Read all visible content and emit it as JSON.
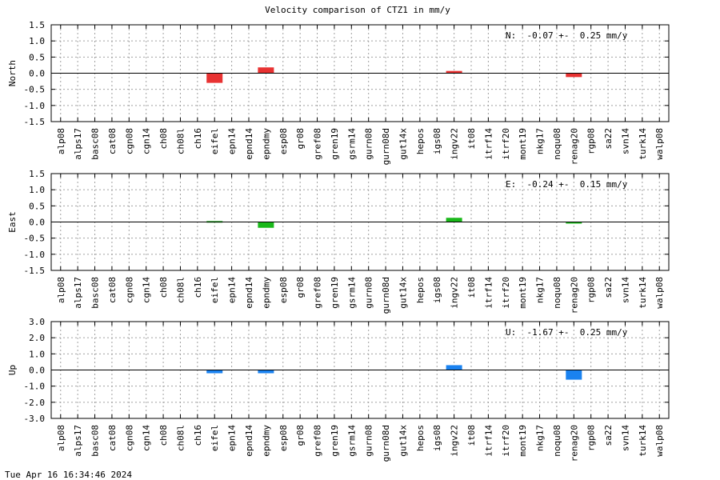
{
  "title": "Velocity comparison of CTZ1 in mm/y",
  "timestamp": "Tue Apr 16 16:34:46 2024",
  "colors": {
    "north": "#e83232",
    "east": "#1ab81a",
    "up": "#1a82f0",
    "grid": "#a0a0a0",
    "zero": "#000000"
  },
  "chart_data": [
    {
      "type": "bar",
      "ylabel": "North",
      "annotation": "N:  -0.07 +-  0.25 mm/y",
      "ylim": [
        -1.5,
        1.5
      ],
      "yticks": [
        "1.5",
        "1.0",
        "0.5",
        "0.0",
        "-0.5",
        "-1.0",
        "-1.5"
      ],
      "ytick_values": [
        1.5,
        1.0,
        0.5,
        0.0,
        -0.5,
        -1.0,
        -1.5
      ],
      "grid": true,
      "categories": [
        "alp08",
        "alps17",
        "basc08",
        "cat08",
        "cgn08",
        "cgn14",
        "ch08",
        "ch08l",
        "ch16",
        "eifel",
        "epn14",
        "epnd14",
        "epndmy",
        "esp08",
        "gr08",
        "gref08",
        "gren19",
        "gsrm14",
        "gurn08",
        "gurn08d",
        "gut14x",
        "hepos",
        "igs08",
        "ingv22",
        "it08",
        "itrf14",
        "itrf20",
        "mont19",
        "nkg17",
        "noqu08",
        "renag20",
        "rgp08",
        "sa22",
        "svn14",
        "turk14",
        "walp08"
      ],
      "values": [
        null,
        null,
        null,
        null,
        null,
        null,
        null,
        null,
        null,
        -0.3,
        null,
        null,
        0.18,
        null,
        null,
        null,
        null,
        null,
        null,
        null,
        null,
        null,
        null,
        0.07,
        null,
        null,
        null,
        null,
        null,
        null,
        -0.12,
        null,
        null,
        null,
        null,
        null
      ],
      "color_key": "north"
    },
    {
      "type": "bar",
      "ylabel": "East",
      "annotation": "E:  -0.24 +-  0.15 mm/y",
      "ylim": [
        -1.5,
        1.5
      ],
      "yticks": [
        "1.5",
        "1.0",
        "0.5",
        "0.0",
        "-0.5",
        "-1.0",
        "-1.5"
      ],
      "ytick_values": [
        1.5,
        1.0,
        0.5,
        0.0,
        -0.5,
        -1.0,
        -1.5
      ],
      "grid": true,
      "categories": [
        "alp08",
        "alps17",
        "basc08",
        "cat08",
        "cgn08",
        "cgn14",
        "ch08",
        "ch08l",
        "ch16",
        "eifel",
        "epn14",
        "epnd14",
        "epndmy",
        "esp08",
        "gr08",
        "gref08",
        "gren19",
        "gsrm14",
        "gurn08",
        "gurn08d",
        "gut14x",
        "hepos",
        "igs08",
        "ingv22",
        "it08",
        "itrf14",
        "itrf20",
        "mont19",
        "nkg17",
        "noqu08",
        "renag20",
        "rgp08",
        "sa22",
        "svn14",
        "turk14",
        "walp08"
      ],
      "values": [
        null,
        null,
        null,
        null,
        null,
        null,
        null,
        null,
        null,
        0.03,
        null,
        null,
        -0.18,
        null,
        null,
        null,
        null,
        null,
        null,
        null,
        null,
        null,
        null,
        0.13,
        null,
        null,
        null,
        null,
        null,
        null,
        -0.03,
        null,
        null,
        null,
        null,
        null
      ],
      "color_key": "east"
    },
    {
      "type": "bar",
      "ylabel": "Up",
      "annotation": "U:  -1.67 +-  0.25 mm/y",
      "ylim": [
        -3.0,
        3.0
      ],
      "yticks": [
        "3.0",
        "2.0",
        "1.0",
        "0.0",
        "-1.0",
        "-2.0",
        "-3.0"
      ],
      "ytick_values": [
        3.0,
        2.0,
        1.0,
        0.0,
        -1.0,
        -2.0,
        -3.0
      ],
      "grid": true,
      "categories": [
        "alp08",
        "alps17",
        "basc08",
        "cat08",
        "cgn08",
        "cgn14",
        "ch08",
        "ch08l",
        "ch16",
        "eifel",
        "epn14",
        "epnd14",
        "epndmy",
        "esp08",
        "gr08",
        "gref08",
        "gren19",
        "gsrm14",
        "gurn08",
        "gurn08d",
        "gut14x",
        "hepos",
        "igs08",
        "ingv22",
        "it08",
        "itrf14",
        "itrf20",
        "mont19",
        "nkg17",
        "noqu08",
        "renag20",
        "rgp08",
        "sa22",
        "svn14",
        "turk14",
        "walp08"
      ],
      "values": [
        null,
        null,
        null,
        null,
        null,
        null,
        null,
        null,
        null,
        -0.2,
        null,
        null,
        -0.2,
        null,
        null,
        null,
        null,
        null,
        null,
        null,
        null,
        null,
        null,
        0.3,
        null,
        null,
        null,
        null,
        null,
        null,
        -0.6,
        null,
        null,
        null,
        null,
        null
      ],
      "color_key": "up"
    }
  ]
}
